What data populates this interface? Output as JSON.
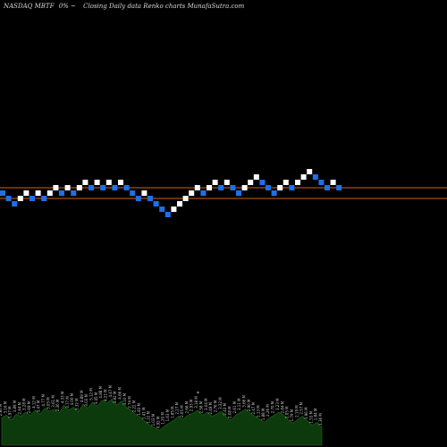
{
  "chart_data": {
    "type": "renko",
    "header": {
      "exchange_symbol": "NASDAQ MBTF",
      "move": "0%",
      "arrow": "~",
      "description": "Closing Daily data  Renko  charts MunafaSutra.com"
    },
    "brick_colors": {
      "up": "#ffffff",
      "down": "#1f6fe8"
    },
    "reference_lines": [
      {
        "color": "#c8641e"
      },
      {
        "color": "#c8641e"
      }
    ],
    "bricks": [
      {
        "level": 0,
        "dir": "down"
      },
      {
        "level": -1,
        "dir": "down"
      },
      {
        "level": -2,
        "dir": "down"
      },
      {
        "level": -1,
        "dir": "up"
      },
      {
        "level": 0,
        "dir": "up"
      },
      {
        "level": -1,
        "dir": "down"
      },
      {
        "level": 0,
        "dir": "up"
      },
      {
        "level": -1,
        "dir": "down"
      },
      {
        "level": 0,
        "dir": "up"
      },
      {
        "level": 1,
        "dir": "up"
      },
      {
        "level": 0,
        "dir": "down"
      },
      {
        "level": 1,
        "dir": "up"
      },
      {
        "level": 0,
        "dir": "down"
      },
      {
        "level": 1,
        "dir": "up"
      },
      {
        "level": 2,
        "dir": "up"
      },
      {
        "level": 1,
        "dir": "down"
      },
      {
        "level": 2,
        "dir": "up"
      },
      {
        "level": 1,
        "dir": "down"
      },
      {
        "level": 2,
        "dir": "up"
      },
      {
        "level": 1,
        "dir": "down"
      },
      {
        "level": 2,
        "dir": "up"
      },
      {
        "level": 1,
        "dir": "down"
      },
      {
        "level": 0,
        "dir": "down"
      },
      {
        "level": -1,
        "dir": "down"
      },
      {
        "level": 0,
        "dir": "up"
      },
      {
        "level": -1,
        "dir": "down"
      },
      {
        "level": -2,
        "dir": "down"
      },
      {
        "level": -3,
        "dir": "down"
      },
      {
        "level": -4,
        "dir": "down"
      },
      {
        "level": -3,
        "dir": "up"
      },
      {
        "level": -2,
        "dir": "up"
      },
      {
        "level": -1,
        "dir": "up"
      },
      {
        "level": 0,
        "dir": "up"
      },
      {
        "level": 1,
        "dir": "up"
      },
      {
        "level": 0,
        "dir": "down"
      },
      {
        "level": 1,
        "dir": "up"
      },
      {
        "level": 2,
        "dir": "up"
      },
      {
        "level": 1,
        "dir": "down"
      },
      {
        "level": 2,
        "dir": "up"
      },
      {
        "level": 1,
        "dir": "down"
      },
      {
        "level": 0,
        "dir": "down"
      },
      {
        "level": 1,
        "dir": "up"
      },
      {
        "level": 2,
        "dir": "up"
      },
      {
        "level": 3,
        "dir": "up"
      },
      {
        "level": 2,
        "dir": "down"
      },
      {
        "level": 1,
        "dir": "down"
      },
      {
        "level": 0,
        "dir": "down"
      },
      {
        "level": 1,
        "dir": "up"
      },
      {
        "level": 2,
        "dir": "up"
      },
      {
        "level": 1,
        "dir": "down"
      },
      {
        "level": 2,
        "dir": "up"
      },
      {
        "level": 3,
        "dir": "up"
      },
      {
        "level": 4,
        "dir": "up"
      },
      {
        "level": 3,
        "dir": "down"
      },
      {
        "level": 2,
        "dir": "down"
      },
      {
        "level": 1,
        "dir": "down"
      },
      {
        "level": 2,
        "dir": "up"
      },
      {
        "level": 1,
        "dir": "down"
      }
    ],
    "volume": {
      "values": [
        0.55,
        0.6,
        0.5,
        0.62,
        0.58,
        0.66,
        0.6,
        0.7,
        0.62,
        0.74,
        0.68,
        0.72,
        0.64,
        0.8,
        0.7,
        0.76,
        0.66,
        0.82,
        0.74,
        0.86,
        0.78,
        0.9,
        0.84,
        0.92,
        0.8,
        0.88,
        0.76,
        0.7,
        0.62,
        0.56,
        0.48,
        0.4,
        0.35,
        0.3,
        0.38,
        0.44,
        0.5,
        0.58,
        0.52,
        0.6,
        0.64,
        0.7,
        0.6,
        0.66,
        0.58,
        0.62,
        0.68,
        0.56,
        0.5,
        0.6,
        0.66,
        0.72,
        0.64,
        0.58,
        0.52,
        0.46,
        0.54,
        0.6,
        0.66,
        0.6,
        0.5,
        0.44,
        0.52,
        0.58,
        0.48,
        0.4,
        0.46,
        0.36
      ],
      "labels": [
        "2.80 M",
        "3.16 M",
        "1.97 M",
        "3.89 M",
        "2.44 M",
        "3.28 M",
        "2.69 M",
        "4.12 M",
        "3.47 M",
        "4.77 M",
        "3.05 M",
        "3.61 M",
        "2.36 M",
        "4.33 M",
        "3.77 M",
        "4.00 M",
        "3.32 M",
        "4.89 M",
        "3.03 M",
        "5.12 M",
        "3.45 M",
        "4.88 M",
        "4.21 M",
        "4.47 M",
        "3.92 M",
        "4.66 M",
        "3.10 M",
        "2.74 M",
        "2.22 M",
        "1.83 M",
        "1.41 M",
        "1.22 M",
        "1.03 M",
        "0.92 M",
        "1.20 M",
        "1.63 M",
        "1.85 M",
        "2.27 M",
        "2.05 M",
        "2.66 M",
        "2.93 M",
        "3.18 M",
        "2.58 M",
        "3.04 M",
        "2.49 M",
        "2.76 M",
        "3.32 M",
        "2.43 M",
        "2.08 M",
        "2.61 M",
        "3.11 M",
        "3.66 M",
        "2.90 M",
        "2.47 M",
        "2.13 M",
        "1.88 M",
        "2.26 M",
        "2.70 M",
        "3.23 M",
        "2.84 M",
        "2.05 M",
        "1.79 M",
        "2.19 M",
        "2.57 M",
        "1.96 M",
        "1.53 M",
        "1.84 M",
        "1.36 M"
      ]
    }
  }
}
